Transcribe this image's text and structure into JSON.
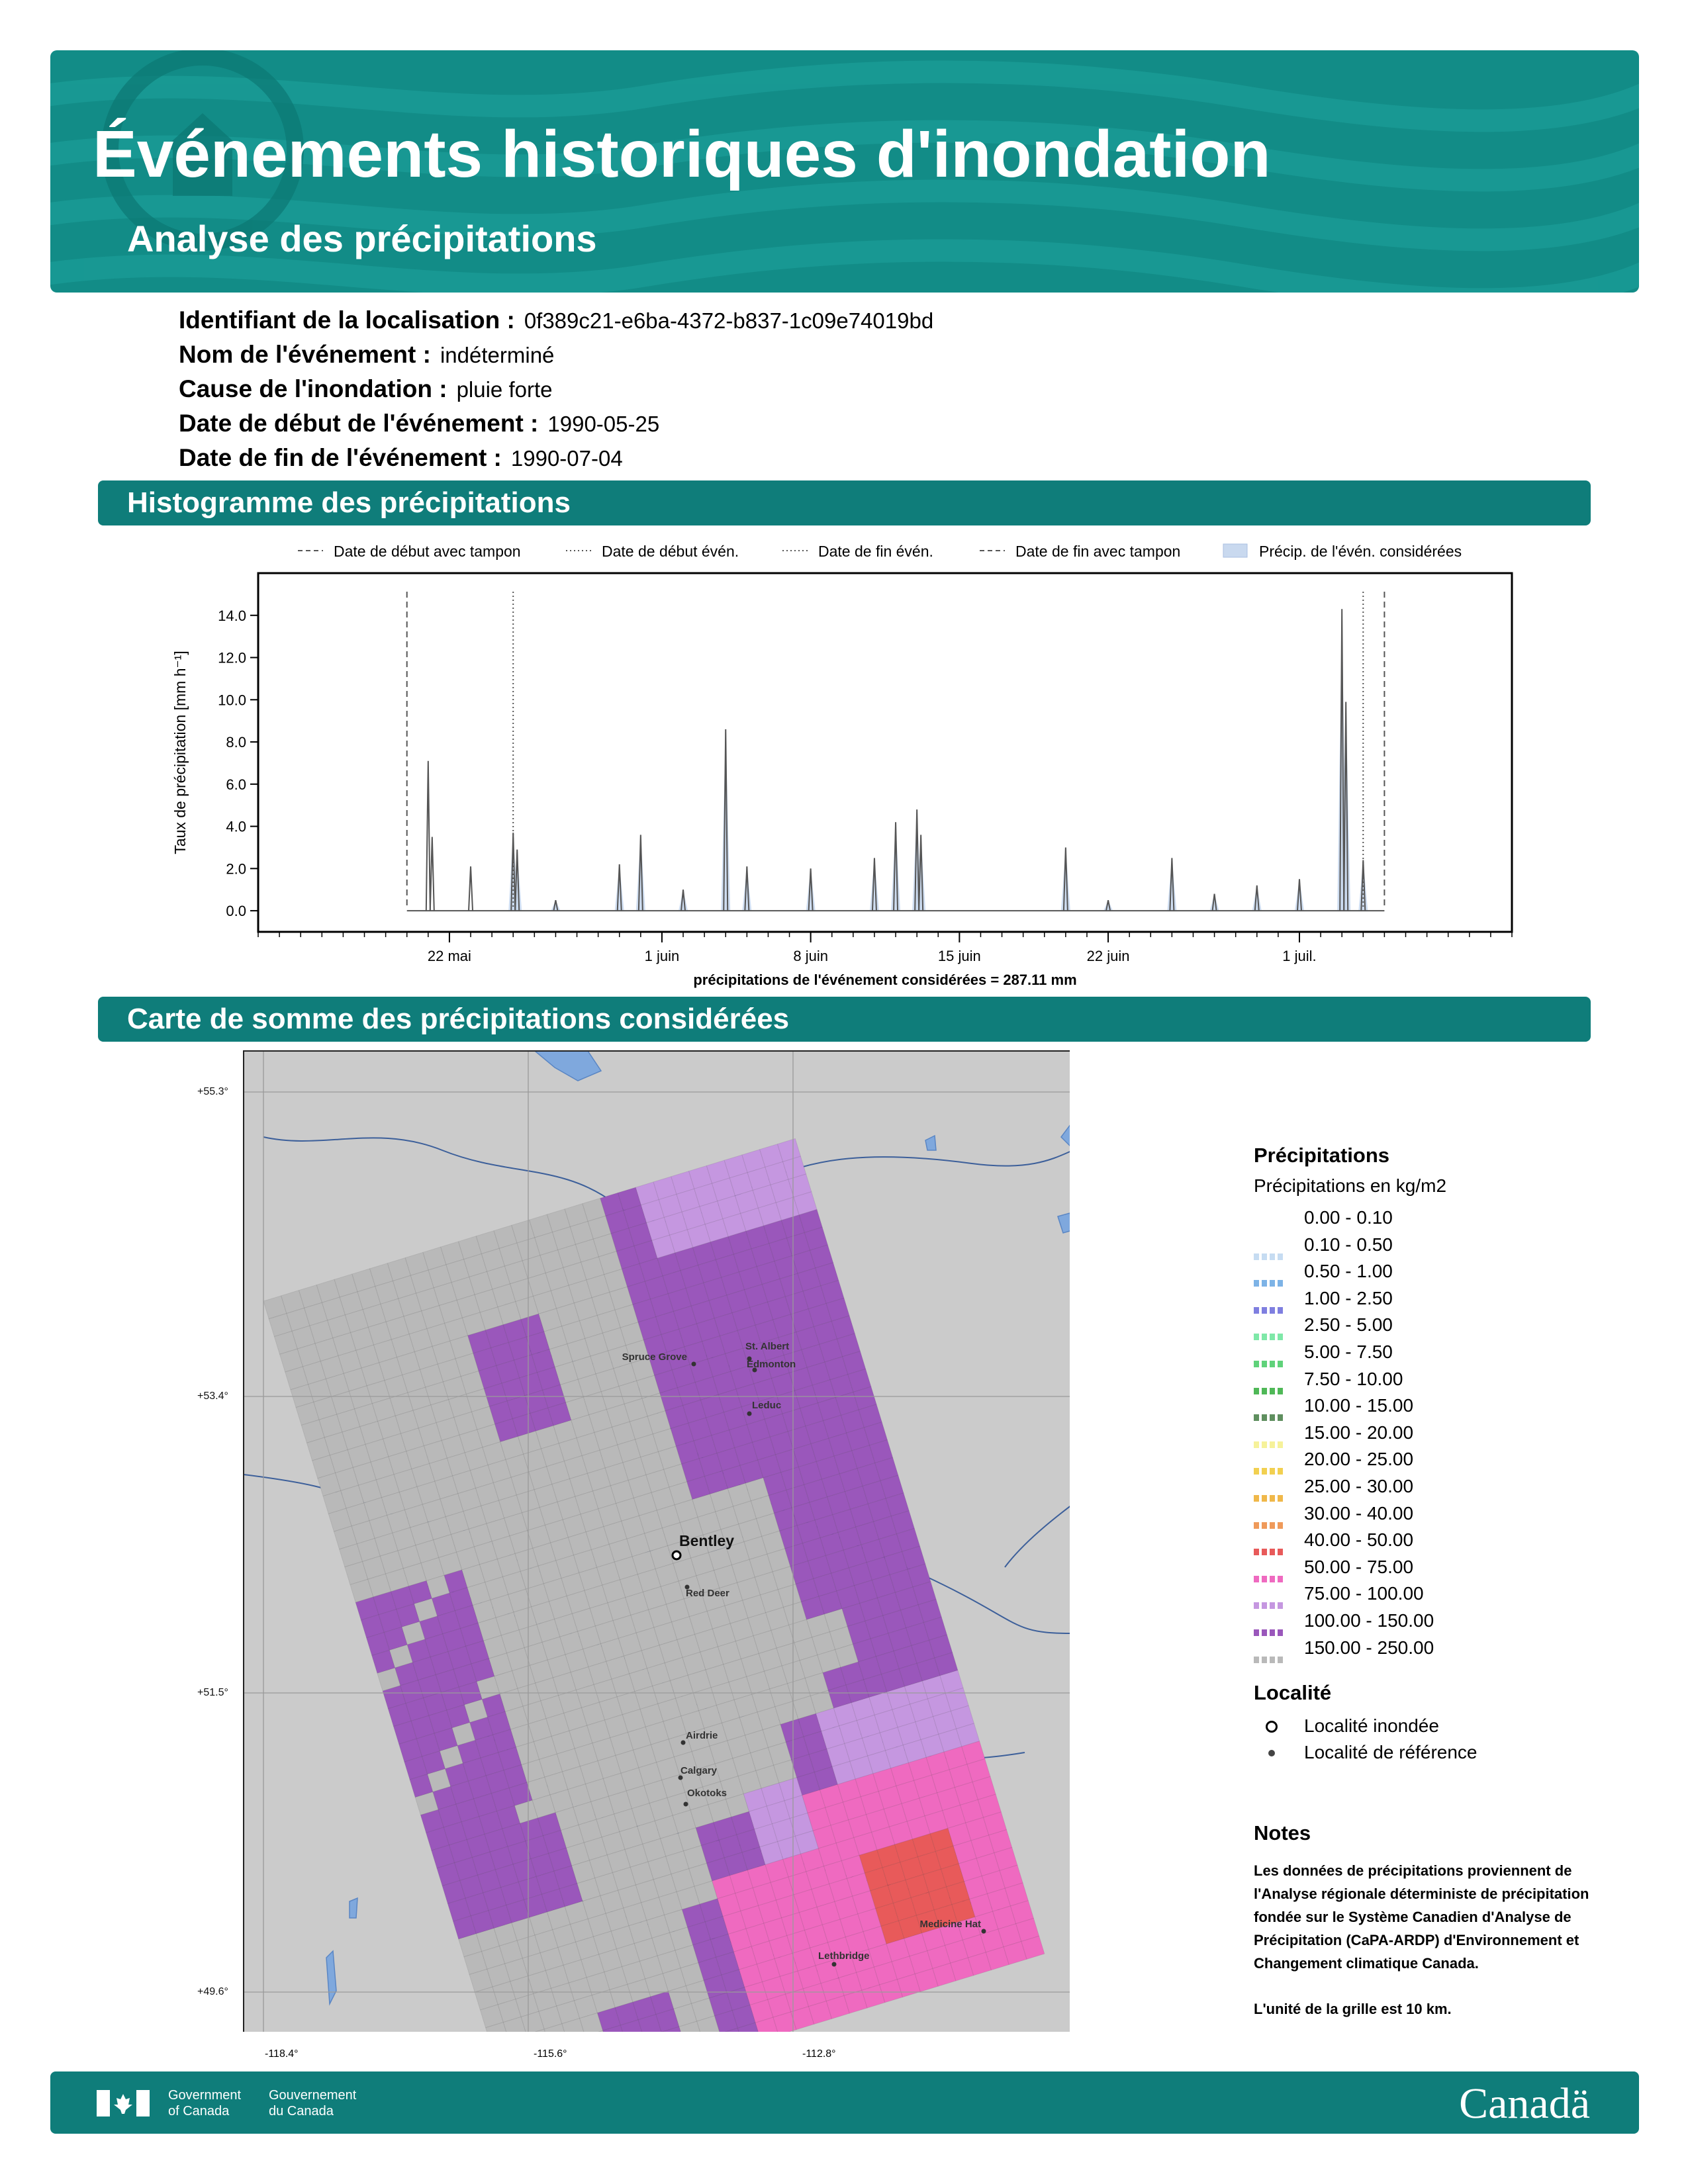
{
  "header": {
    "title": "Événements historiques d'inondation",
    "subtitle": "Analyse des précipitations"
  },
  "meta": [
    {
      "label": "Identifiant de la localisation :",
      "value": "0f389c21-e6ba-4372-b837-1c09e74019bd"
    },
    {
      "label": "Nom de l'événement :",
      "value": "indéterminé"
    },
    {
      "label": "Cause de l'inondation :",
      "value": "pluie forte"
    },
    {
      "label": "Date de début de l'événement :",
      "value": "1990-05-25"
    },
    {
      "label": "Date de fin de l'événement :",
      "value": "1990-07-04"
    }
  ],
  "sections": {
    "histogram": "Histogramme des précipitations",
    "map": "Carte de somme des précipitations considérées"
  },
  "chart_data": {
    "type": "bar",
    "ylabel": "Taux de précipitation [mm h⁻¹]",
    "xlabel": "précipitations de l'événement considérées = 287.11 mm",
    "ylim": [
      -1.0,
      16.0
    ],
    "yticks": [
      "0.0",
      "2.0",
      "4.0",
      "6.0",
      "8.0",
      "10.0",
      "12.0",
      "14.0"
    ],
    "xticks": [
      "22 mai",
      "1 juin",
      "8 juin",
      "15 juin",
      "22 juin",
      "1 juil."
    ],
    "legend": [
      {
        "label": "Date de début avec tampon",
        "style": "dashed"
      },
      {
        "label": "Date de début évén.",
        "style": "dotted"
      },
      {
        "label": "Date de fin évén.",
        "style": "dotted"
      },
      {
        "label": "Date de fin avec tampon",
        "style": "dashed"
      },
      {
        "label": "Précip. de l'évén. considérées",
        "style": "fill"
      }
    ],
    "vlines": {
      "buffer_start": "1990-05-20",
      "event_start": "1990-05-25",
      "event_end": "1990-07-04",
      "buffer_end": "1990-07-05"
    },
    "peaks": [
      {
        "day": "05-21",
        "v": 7.1
      },
      {
        "day": "05-21",
        "v": 3.5
      },
      {
        "day": "05-23",
        "v": 2.1
      },
      {
        "day": "05-25",
        "v": 3.7
      },
      {
        "day": "05-25",
        "v": 2.9
      },
      {
        "day": "05-27",
        "v": 0.5
      },
      {
        "day": "05-30",
        "v": 2.2
      },
      {
        "day": "05-31",
        "v": 3.6
      },
      {
        "day": "06-02",
        "v": 1.0
      },
      {
        "day": "06-04",
        "v": 8.6
      },
      {
        "day": "06-05",
        "v": 2.1
      },
      {
        "day": "06-08",
        "v": 2.0
      },
      {
        "day": "06-11",
        "v": 2.5
      },
      {
        "day": "06-12",
        "v": 4.2
      },
      {
        "day": "06-13",
        "v": 4.8
      },
      {
        "day": "06-13",
        "v": 3.6
      },
      {
        "day": "06-20",
        "v": 3.0
      },
      {
        "day": "06-22",
        "v": 0.5
      },
      {
        "day": "06-25",
        "v": 2.5
      },
      {
        "day": "06-27",
        "v": 0.8
      },
      {
        "day": "06-29",
        "v": 1.2
      },
      {
        "day": "07-01",
        "v": 1.5
      },
      {
        "day": "07-03",
        "v": 14.3
      },
      {
        "day": "07-03",
        "v": 9.9
      },
      {
        "day": "07-04",
        "v": 2.4
      }
    ]
  },
  "map": {
    "lat_labels": [
      "+55.3°",
      "+53.4°",
      "+51.5°",
      "+49.6°"
    ],
    "lon_labels": [
      "-118.4°",
      "-115.6°",
      "-112.8°"
    ],
    "places": [
      {
        "name": "Spruce Grove"
      },
      {
        "name": "St. Albert"
      },
      {
        "name": "Edmonton"
      },
      {
        "name": "Leduc"
      },
      {
        "name": "Bentley",
        "flooded": true
      },
      {
        "name": "Red Deer"
      },
      {
        "name": "Airdrie"
      },
      {
        "name": "Calgary"
      },
      {
        "name": "Okotoks"
      },
      {
        "name": "Medicine Hat"
      },
      {
        "name": "Lethbridge"
      }
    ]
  },
  "map_legend": {
    "title": "Précipitations",
    "subtitle": "Précipitations en kg/m2",
    "classes": [
      {
        "label": "0.00 - 0.10",
        "color": "#ffffff"
      },
      {
        "label": "0.10 - 0.50",
        "color": "#c6dcf2"
      },
      {
        "label": "0.50 - 1.00",
        "color": "#7db3e6"
      },
      {
        "label": "1.00 - 2.50",
        "color": "#7f7fe0"
      },
      {
        "label": "2.50 - 5.00",
        "color": "#7fe8a8"
      },
      {
        "label": "5.00 - 7.50",
        "color": "#5fd27a"
      },
      {
        "label": "7.50 - 10.00",
        "color": "#4fb857"
      },
      {
        "label": "10.00 - 15.00",
        "color": "#5f8f5f"
      },
      {
        "label": "15.00 - 20.00",
        "color": "#f6f29a"
      },
      {
        "label": "20.00 - 25.00",
        "color": "#f2d050"
      },
      {
        "label": "25.00 - 30.00",
        "color": "#f0b84a"
      },
      {
        "label": "30.00 - 40.00",
        "color": "#ef9a5a"
      },
      {
        "label": "40.00 - 50.00",
        "color": "#e85a5a"
      },
      {
        "label": "50.00 - 75.00",
        "color": "#ef6ac0"
      },
      {
        "label": "75.00 - 100.00",
        "color": "#c597e0"
      },
      {
        "label": "100.00 - 150.00",
        "color": "#9a57bb"
      },
      {
        "label": "150.00 - 250.00",
        "color": "#b9b9b9"
      }
    ],
    "locality_title": "Localité",
    "locality_items": [
      {
        "label": "Localité inondée",
        "symbol": "open-circle"
      },
      {
        "label": "Localité de référence",
        "symbol": "dot"
      }
    ]
  },
  "notes": {
    "title": "Notes",
    "body": "Les données de précipitations proviennent de l'Analyse régionale déterministe de précipitation fondée sur le Système Canadien d'Analyse de Précipitation (CaPA-ARDP) d'Environnement et Changement climatique Canada.",
    "grid": "L'unité de la grille est 10 km."
  },
  "footer": {
    "gov_en": "Government of Canada",
    "gov_fr": "Gouvernement du Canada",
    "wordmark": "Canadä"
  }
}
